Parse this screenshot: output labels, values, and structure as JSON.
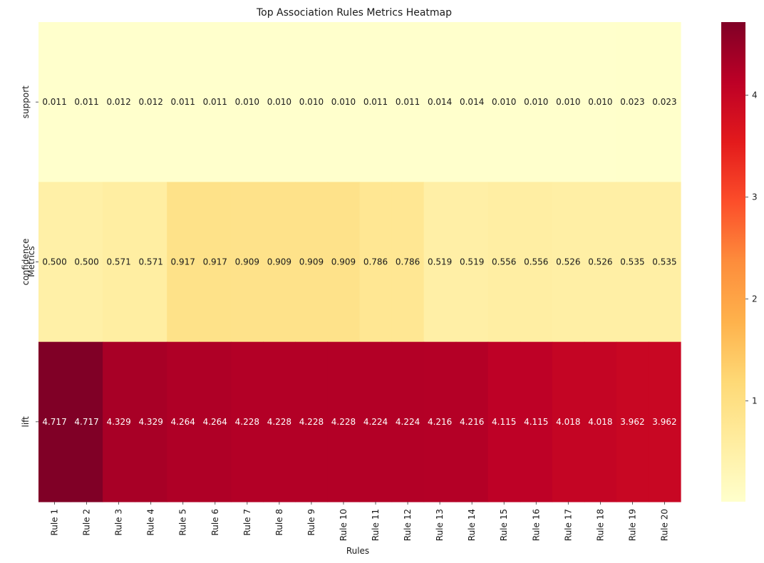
{
  "chart_data": {
    "type": "heatmap",
    "title": "Top Association Rules Metrics Heatmap",
    "xlabel": "Rules",
    "ylabel": "Metrics",
    "x_categories": [
      "Rule 1",
      "Rule 2",
      "Rule 3",
      "Rule 4",
      "Rule 5",
      "Rule 6",
      "Rule 7",
      "Rule 8",
      "Rule 9",
      "Rule 10",
      "Rule 11",
      "Rule 12",
      "Rule 13",
      "Rule 14",
      "Rule 15",
      "Rule 16",
      "Rule 17",
      "Rule 18",
      "Rule 19",
      "Rule 20"
    ],
    "y_categories": [
      "support",
      "confidence",
      "lift"
    ],
    "values": [
      [
        0.011,
        0.011,
        0.012,
        0.012,
        0.011,
        0.011,
        0.01,
        0.01,
        0.01,
        0.01,
        0.011,
        0.011,
        0.014,
        0.014,
        0.01,
        0.01,
        0.01,
        0.01,
        0.023,
        0.023
      ],
      [
        0.5,
        0.5,
        0.571,
        0.571,
        0.917,
        0.917,
        0.909,
        0.909,
        0.909,
        0.909,
        0.786,
        0.786,
        0.519,
        0.519,
        0.556,
        0.556,
        0.526,
        0.526,
        0.535,
        0.535
      ],
      [
        4.717,
        4.717,
        4.329,
        4.329,
        4.264,
        4.264,
        4.228,
        4.228,
        4.228,
        4.228,
        4.224,
        4.224,
        4.216,
        4.216,
        4.115,
        4.115,
        4.018,
        4.018,
        3.962,
        3.962
      ]
    ],
    "value_labels": [
      [
        "0.011",
        "0.011",
        "0.012",
        "0.012",
        "0.011",
        "0.011",
        "0.010",
        "0.010",
        "0.010",
        "0.010",
        "0.011",
        "0.011",
        "0.014",
        "0.014",
        "0.010",
        "0.010",
        "0.010",
        "0.010",
        "0.023",
        "0.023"
      ],
      [
        "0.500",
        "0.500",
        "0.571",
        "0.571",
        "0.917",
        "0.917",
        "0.909",
        "0.909",
        "0.909",
        "0.909",
        "0.786",
        "0.786",
        "0.519",
        "0.519",
        "0.556",
        "0.556",
        "0.526",
        "0.526",
        "0.535",
        "0.535"
      ],
      [
        "4.717",
        "4.717",
        "4.329",
        "4.329",
        "4.264",
        "4.264",
        "4.228",
        "4.228",
        "4.228",
        "4.228",
        "4.224",
        "4.224",
        "4.216",
        "4.216",
        "4.115",
        "4.115",
        "4.018",
        "4.018",
        "3.962",
        "3.962"
      ]
    ],
    "colormap": "YlOrRd",
    "colormap_stops": [
      "#ffffcc",
      "#ffeda0",
      "#fed976",
      "#feb24c",
      "#fd8d3c",
      "#fc4e2a",
      "#e31a1c",
      "#bd0026",
      "#800026"
    ],
    "color_range": [
      0.01,
      4.717
    ],
    "colorbar_ticks": [
      "1",
      "2",
      "3",
      "4"
    ],
    "grid": false
  }
}
